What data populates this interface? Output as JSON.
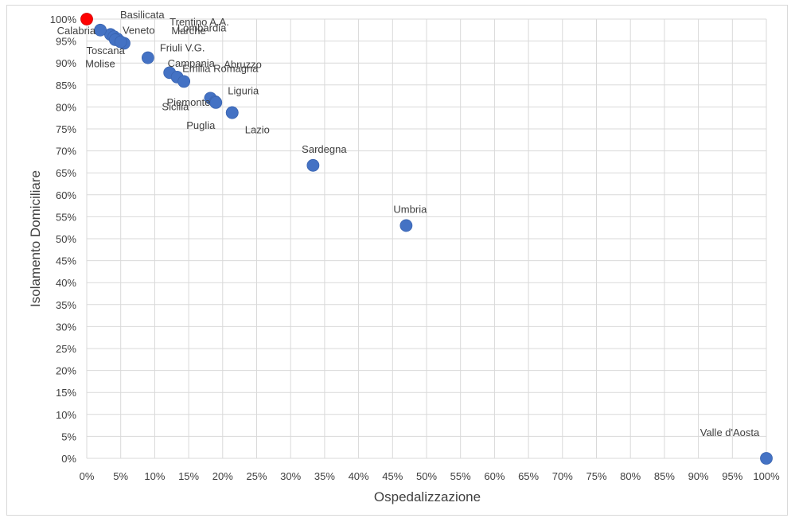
{
  "chart_data": {
    "type": "scatter",
    "title": "",
    "xlabel": "Ospedalizzazione",
    "ylabel": "Isolamento Domiciliare",
    "xlim": [
      0,
      100
    ],
    "ylim": [
      0,
      100
    ],
    "x_ticks": [
      "0%",
      "5%",
      "10%",
      "15%",
      "20%",
      "25%",
      "30%",
      "35%",
      "40%",
      "45%",
      "50%",
      "55%",
      "60%",
      "65%",
      "70%",
      "75%",
      "80%",
      "85%",
      "90%",
      "95%",
      "100%"
    ],
    "y_ticks": [
      "0%",
      "5%",
      "10%",
      "15%",
      "20%",
      "25%",
      "30%",
      "35%",
      "40%",
      "45%",
      "50%",
      "55%",
      "60%",
      "65%",
      "70%",
      "75%",
      "80%",
      "85%",
      "90%",
      "95%",
      "100%"
    ],
    "grid": true,
    "colors": {
      "default": "#4472c4",
      "highlight": "#ff0000",
      "grid": "#d9d9d9",
      "label": "#404040"
    },
    "points": [
      {
        "name": "Basilicata",
        "x": 0.0,
        "y": 100.0,
        "highlight": true,
        "label_pos": "right-above"
      },
      {
        "name": "Lombardia",
        "x": 3.5,
        "y": 96.5,
        "label_pos": "top-far"
      },
      {
        "name": "Trentino A.A.",
        "x": 4.0,
        "y": 96.0,
        "label_pos": "top-mid"
      },
      {
        "name": "Calabria",
        "x": 2.0,
        "y": 97.5,
        "label_pos": "left"
      },
      {
        "name": "Veneto",
        "x": 5.5,
        "y": 94.5,
        "label_pos": "above-right"
      },
      {
        "name": "Marche",
        "x": 4.5,
        "y": 95.5,
        "label_pos": "above-far"
      },
      {
        "name": "Toscana",
        "x": 4.2,
        "y": 95.3,
        "label_pos": "below-left"
      },
      {
        "name": "Molise",
        "x": 5.0,
        "y": 94.8,
        "label_pos": "below-left2"
      },
      {
        "name": "Friuli V.G.",
        "x": 9.0,
        "y": 91.2,
        "label_pos": "above-right"
      },
      {
        "name": "Abruzzo",
        "x": 12.2,
        "y": 87.8,
        "label_pos": "above-far"
      },
      {
        "name": "Campania",
        "x": 13.3,
        "y": 86.8,
        "label_pos": "above-mid"
      },
      {
        "name": "Emilia Romagna",
        "x": 14.3,
        "y": 85.8,
        "label_pos": "above-right"
      },
      {
        "name": "Sicilia",
        "x": 18.2,
        "y": 82.0,
        "label_pos": "left-above"
      },
      {
        "name": "Piemonte",
        "x": 18.9,
        "y": 81.2,
        "label_pos": "left"
      },
      {
        "name": "Liguria",
        "x": 21.4,
        "y": 78.7,
        "label_pos": "above"
      },
      {
        "name": "Puglia",
        "x": 19.0,
        "y": 81.0,
        "label_pos": "below"
      },
      {
        "name": "Lazio",
        "x": 21.4,
        "y": 78.7,
        "label_pos": "below-right"
      },
      {
        "name": "Sardegna",
        "x": 33.3,
        "y": 66.7,
        "label_pos": "above"
      },
      {
        "name": "Umbria",
        "x": 47.0,
        "y": 53.0,
        "label_pos": "above"
      },
      {
        "name": "Valle d'Aosta",
        "x": 100.0,
        "y": 0.0,
        "label_pos": "above-left"
      }
    ]
  }
}
